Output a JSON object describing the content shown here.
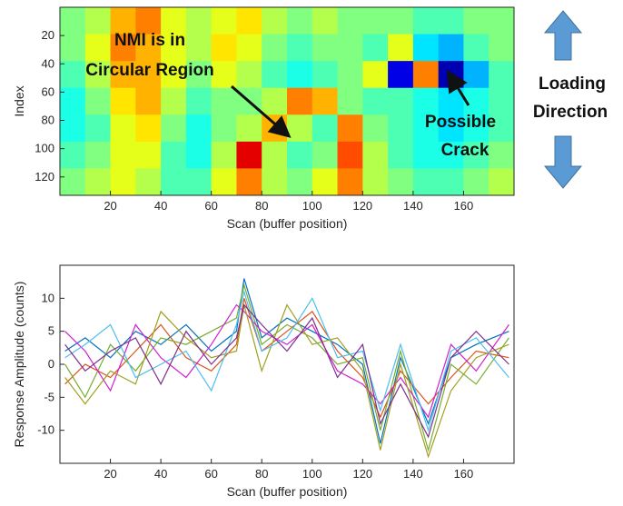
{
  "chart_data": [
    {
      "type": "heatmap",
      "colormap": "jet",
      "xlabel": "Scan (buffer position)",
      "ylabel": "Index",
      "xlim": [
        0,
        180
      ],
      "ylim": [
        0,
        133
      ],
      "y_reversed": true,
      "xticks": [
        20,
        40,
        60,
        80,
        100,
        120,
        140,
        160
      ],
      "yticks": [
        20,
        40,
        60,
        80,
        100,
        120
      ],
      "xbins": [
        0,
        10,
        20,
        30,
        40,
        50,
        60,
        70,
        80,
        90,
        100,
        110,
        120,
        130,
        140,
        150,
        160,
        170,
        180
      ],
      "ybins": [
        0,
        19,
        38,
        57,
        76,
        95,
        114,
        133
      ],
      "zlim": [
        0,
        1
      ],
      "z": [
        [
          0.5,
          0.55,
          0.7,
          0.75,
          0.6,
          0.55,
          0.6,
          0.65,
          0.55,
          0.5,
          0.55,
          0.5,
          0.5,
          0.5,
          0.45,
          0.45,
          0.5,
          0.5
        ],
        [
          0.5,
          0.6,
          0.75,
          0.7,
          0.6,
          0.55,
          0.65,
          0.6,
          0.5,
          0.45,
          0.5,
          0.5,
          0.45,
          0.6,
          0.35,
          0.3,
          0.45,
          0.5
        ],
        [
          0.45,
          0.55,
          0.7,
          0.7,
          0.6,
          0.5,
          0.6,
          0.55,
          0.45,
          0.4,
          0.45,
          0.5,
          0.6,
          0.1,
          0.75,
          0.05,
          0.3,
          0.45
        ],
        [
          0.4,
          0.5,
          0.65,
          0.7,
          0.55,
          0.45,
          0.5,
          0.5,
          0.55,
          0.75,
          0.7,
          0.5,
          0.45,
          0.45,
          0.4,
          0.35,
          0.4,
          0.45
        ],
        [
          0.4,
          0.45,
          0.6,
          0.65,
          0.5,
          0.4,
          0.5,
          0.55,
          0.7,
          0.55,
          0.45,
          0.75,
          0.5,
          0.45,
          0.4,
          0.35,
          0.4,
          0.45
        ],
        [
          0.45,
          0.5,
          0.6,
          0.6,
          0.45,
          0.4,
          0.55,
          0.9,
          0.55,
          0.45,
          0.5,
          0.8,
          0.55,
          0.45,
          0.4,
          0.4,
          0.45,
          0.5
        ],
        [
          0.5,
          0.55,
          0.6,
          0.55,
          0.45,
          0.45,
          0.6,
          0.75,
          0.55,
          0.5,
          0.6,
          0.75,
          0.55,
          0.5,
          0.45,
          0.45,
          0.5,
          0.55
        ]
      ],
      "annotations": [
        "NMI is in",
        "Circular Region",
        "Possible",
        "Crack",
        "Loading",
        "Direction"
      ]
    },
    {
      "type": "line",
      "xlabel": "Scan (buffer position)",
      "ylabel": "Response Amplitude (counts)",
      "xlim": [
        0,
        180
      ],
      "ylim": [
        -15,
        15
      ],
      "xticks": [
        20,
        40,
        60,
        80,
        100,
        120,
        140,
        160
      ],
      "yticks": [
        -10,
        -5,
        0,
        5,
        10
      ],
      "x": [
        2,
        10,
        20,
        30,
        40,
        50,
        60,
        70,
        73,
        80,
        90,
        100,
        110,
        120,
        127,
        135,
        146,
        155,
        165,
        178
      ],
      "series": [
        {
          "color": "#0072bd",
          "values": [
            2,
            4,
            1,
            5,
            3,
            6,
            2,
            5,
            13,
            4,
            7,
            5,
            3,
            0,
            -12,
            1,
            -9,
            1,
            3,
            5
          ]
        },
        {
          "color": "#d95319",
          "values": [
            -3,
            0,
            -2,
            2,
            6,
            1,
            -1,
            3,
            10,
            2,
            5,
            8,
            2,
            -2,
            -8,
            -1,
            -6,
            -2,
            2,
            1
          ]
        },
        {
          "color": "#77ac30",
          "values": [
            0,
            -5,
            3,
            -1,
            4,
            3,
            5,
            7,
            12,
            3,
            6,
            4,
            0,
            1,
            -10,
            2,
            -13,
            0,
            -3,
            4
          ]
        },
        {
          "color": "#d020d0",
          "values": [
            5,
            2,
            -4,
            6,
            1,
            -2,
            3,
            9,
            8,
            5,
            3,
            6,
            -1,
            -3,
            -6,
            -2,
            -8,
            3,
            -1,
            6
          ]
        },
        {
          "color": "#a0a020",
          "values": [
            -2,
            -6,
            -1,
            -3,
            8,
            4,
            1,
            2,
            9,
            -1,
            9,
            3,
            4,
            -1,
            -13,
            0,
            -14,
            -4,
            1,
            3
          ]
        },
        {
          "color": "#4dbeee",
          "values": [
            1,
            3,
            6,
            -2,
            0,
            2,
            -4,
            6,
            11,
            2,
            4,
            10,
            1,
            2,
            -7,
            3,
            -10,
            2,
            4,
            -2
          ]
        },
        {
          "color": "#7e2f8e",
          "values": [
            3,
            -1,
            2,
            4,
            -3,
            5,
            0,
            4,
            9,
            6,
            2,
            7,
            -2,
            3,
            -9,
            -3,
            -11,
            1,
            5,
            0
          ]
        }
      ]
    }
  ]
}
